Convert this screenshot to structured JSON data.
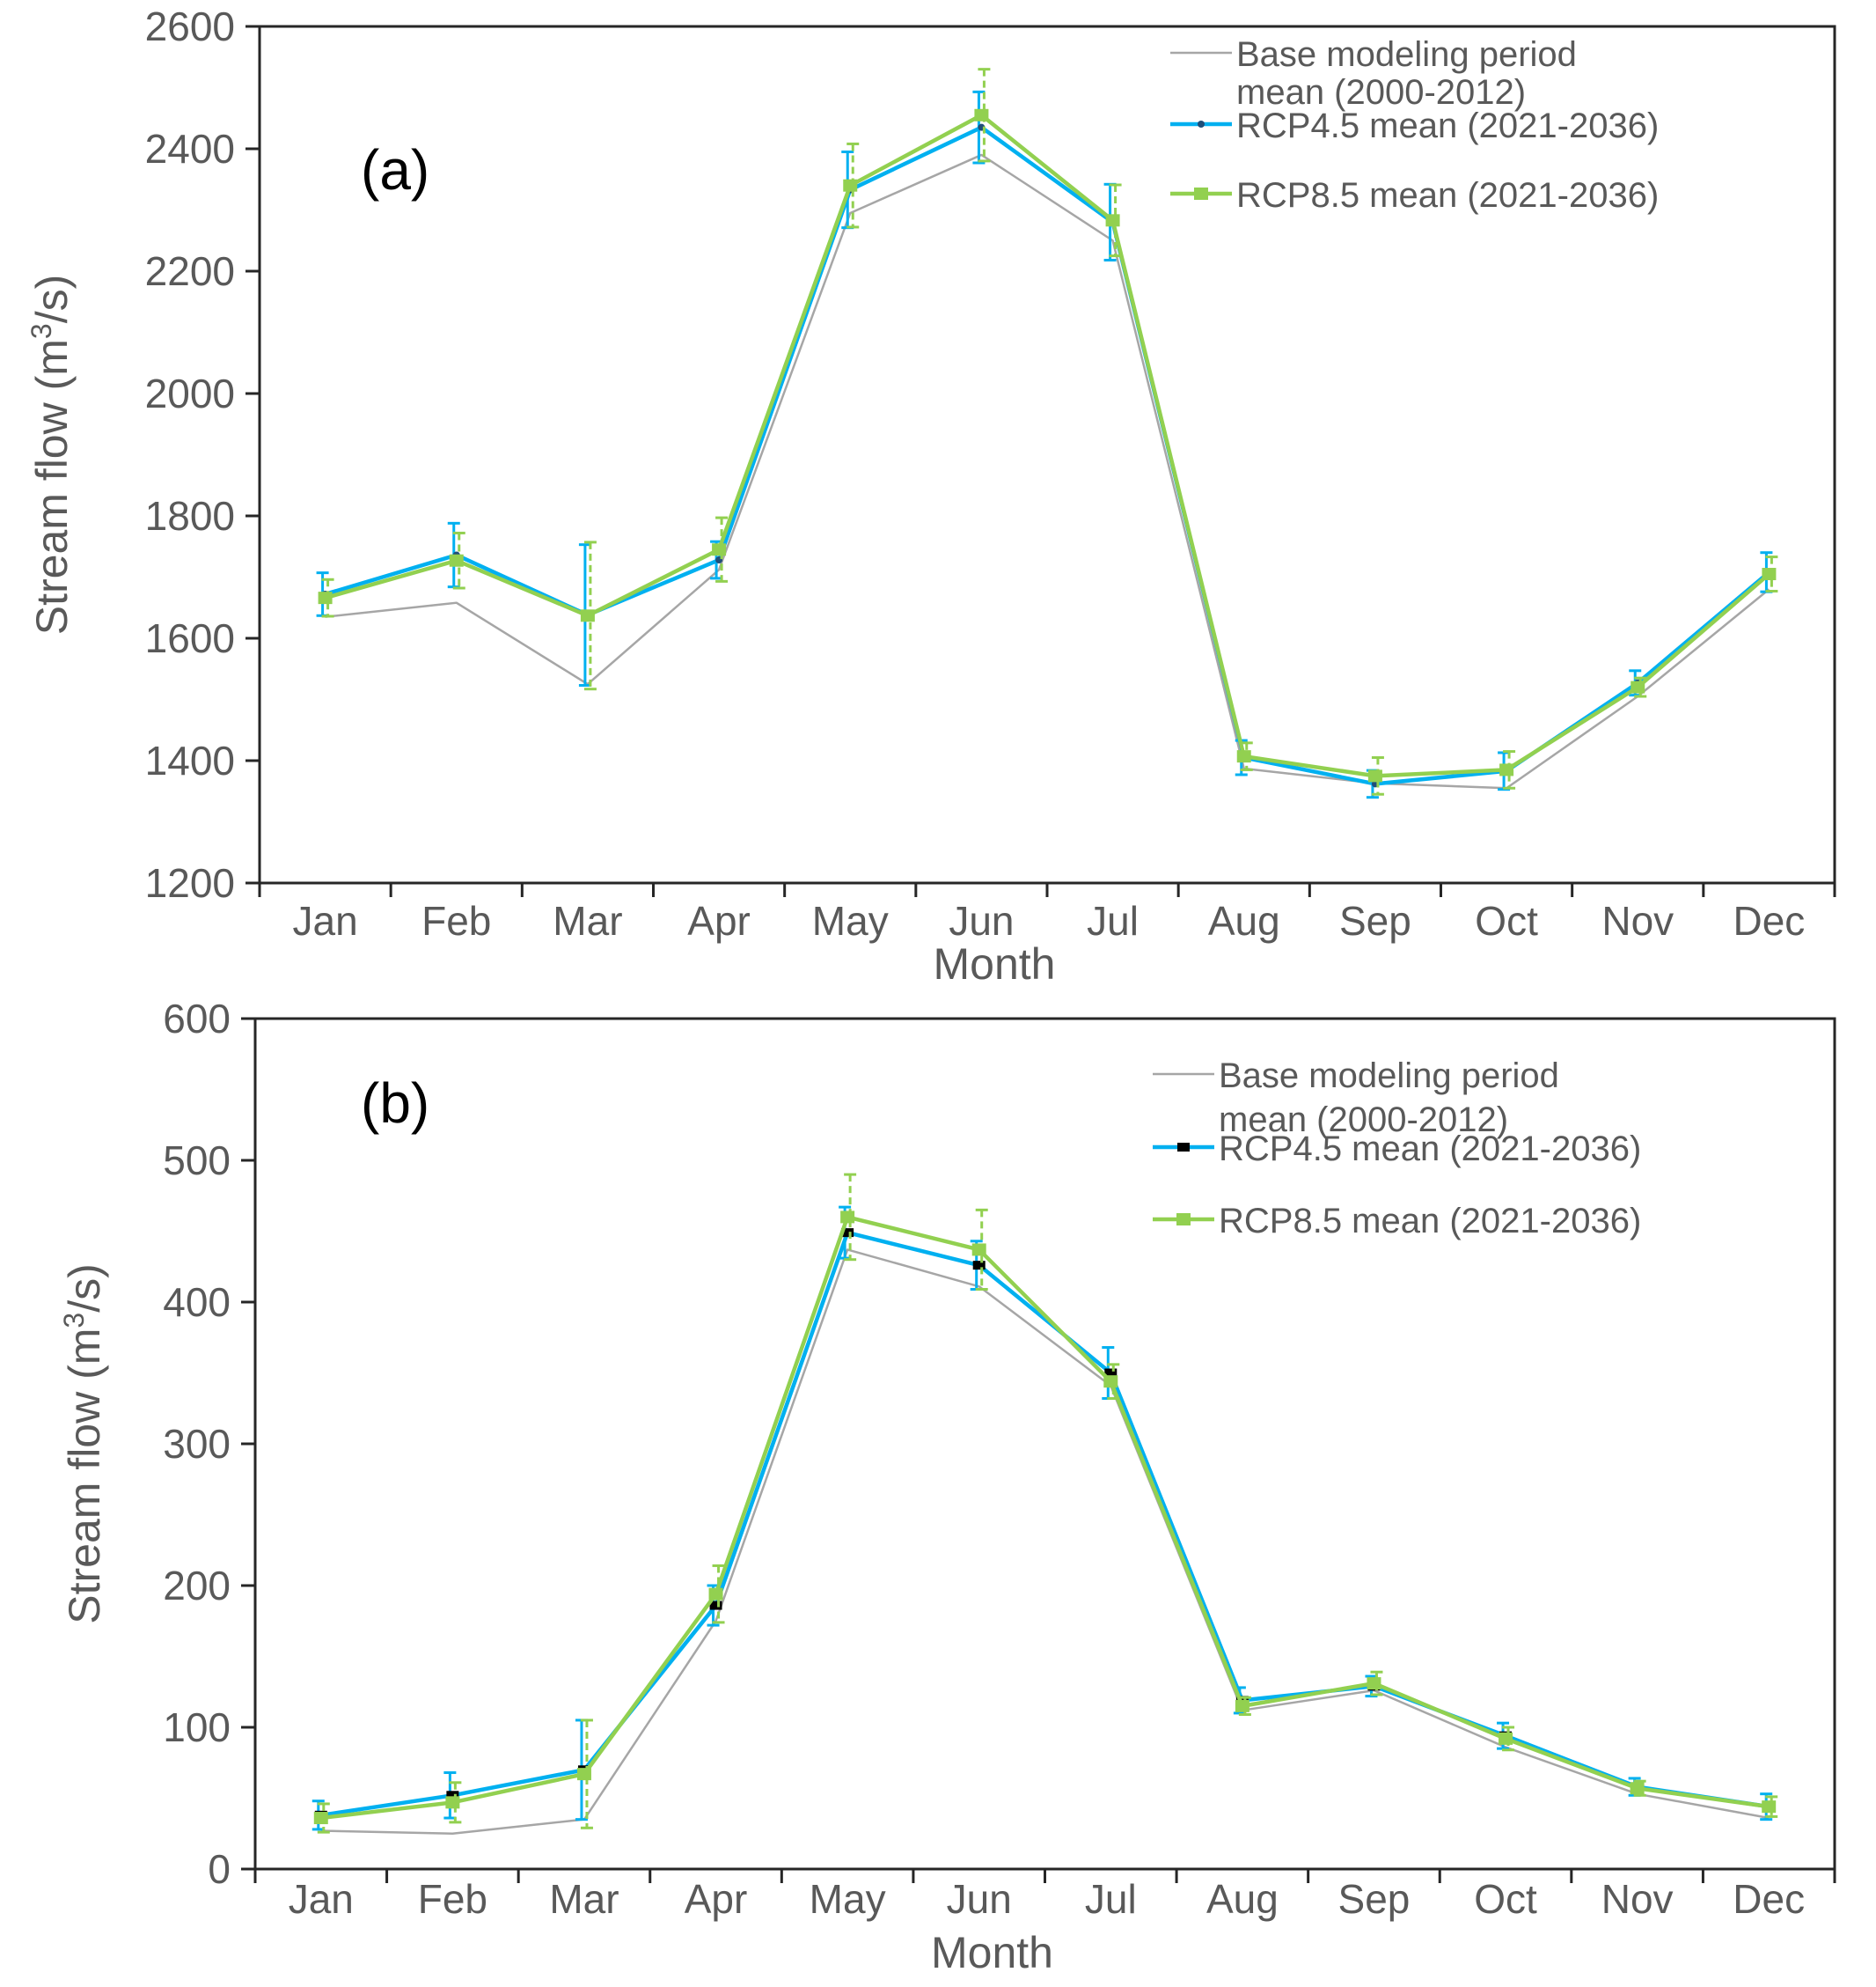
{
  "chart_data": [
    {
      "type": "line",
      "panel_label": "(a)",
      "xlabel": "Month",
      "ylabel_prefix": "Stream flow (m",
      "ylabel_sup": "3",
      "ylabel_suffix": "/s)",
      "ylim": [
        1200,
        2600
      ],
      "yticks": [
        1200,
        1400,
        1600,
        1800,
        2000,
        2200,
        2400,
        2600
      ],
      "categories": [
        "Jan",
        "Feb",
        "Mar",
        "Apr",
        "May",
        "Jun",
        "Jul",
        "Aug",
        "Sep",
        "Oct",
        "Nov",
        "Dec"
      ],
      "series": [
        {
          "name": "Base modeling period",
          "name_line2": "mean (2000-2012)",
          "key": "base",
          "color": "#a6a6a6",
          "values": [
            1635,
            1658,
            1525,
            1712,
            2295,
            2390,
            2250,
            1387,
            1363,
            1355,
            1505,
            1680
          ]
        },
        {
          "name": "RCP4.5 mean (2021-2036)",
          "key": "rcp45",
          "color": "#00b0f0",
          "marker_color": "#1f4e79",
          "values": [
            1672,
            1736,
            1638,
            1728,
            2333,
            2435,
            2280,
            1405,
            1362,
            1383,
            1527,
            1708
          ],
          "errors": [
            35,
            52,
            115,
            30,
            62,
            58,
            62,
            28,
            22,
            30,
            20,
            32
          ]
        },
        {
          "name": "RCP8.5 mean (2021-2036)",
          "key": "rcp85",
          "color": "#92d050",
          "values": [
            1666,
            1727,
            1637,
            1745,
            2340,
            2455,
            2283,
            1407,
            1375,
            1385,
            1520,
            1705
          ],
          "errors": [
            30,
            45,
            120,
            52,
            68,
            75,
            58,
            22,
            30,
            30,
            15,
            28
          ]
        }
      ]
    },
    {
      "type": "line",
      "panel_label": "(b)",
      "xlabel": "Month",
      "ylabel_prefix": "Stream flow (m",
      "ylabel_sup": "3",
      "ylabel_suffix": "/s)",
      "ylim": [
        0,
        600
      ],
      "yticks": [
        0,
        100,
        200,
        300,
        400,
        500,
        600
      ],
      "categories": [
        "Jan",
        "Feb",
        "Mar",
        "Apr",
        "May",
        "Jun",
        "Jul",
        "Aug",
        "Sep",
        "Oct",
        "Nov",
        "Dec"
      ],
      "series": [
        {
          "name": "Base modeling period",
          "name_line2": "mean (2000-2012)",
          "key": "base",
          "color": "#a6a6a6",
          "values": [
            27,
            25,
            35,
            175,
            437,
            411,
            341,
            112,
            126,
            86,
            53,
            36
          ]
        },
        {
          "name": "RCP4.5 mean (2021-2036)",
          "key": "rcp45",
          "color": "#00b0f0",
          "marker_color": "#000000",
          "values": [
            38,
            52,
            70,
            186,
            449,
            426,
            350,
            119,
            129,
            94,
            58,
            44
          ],
          "errors": [
            10,
            16,
            35,
            14,
            18,
            17,
            18,
            9,
            7,
            9,
            6,
            9
          ]
        },
        {
          "name": "RCP8.5 mean (2021-2036)",
          "key": "rcp85",
          "color": "#92d050",
          "values": [
            36,
            47,
            67,
            194,
            460,
            437,
            344,
            115,
            131,
            92,
            57,
            44
          ],
          "errors": [
            10,
            14,
            38,
            20,
            30,
            28,
            12,
            6,
            8,
            8,
            5,
            7
          ]
        }
      ]
    }
  ]
}
